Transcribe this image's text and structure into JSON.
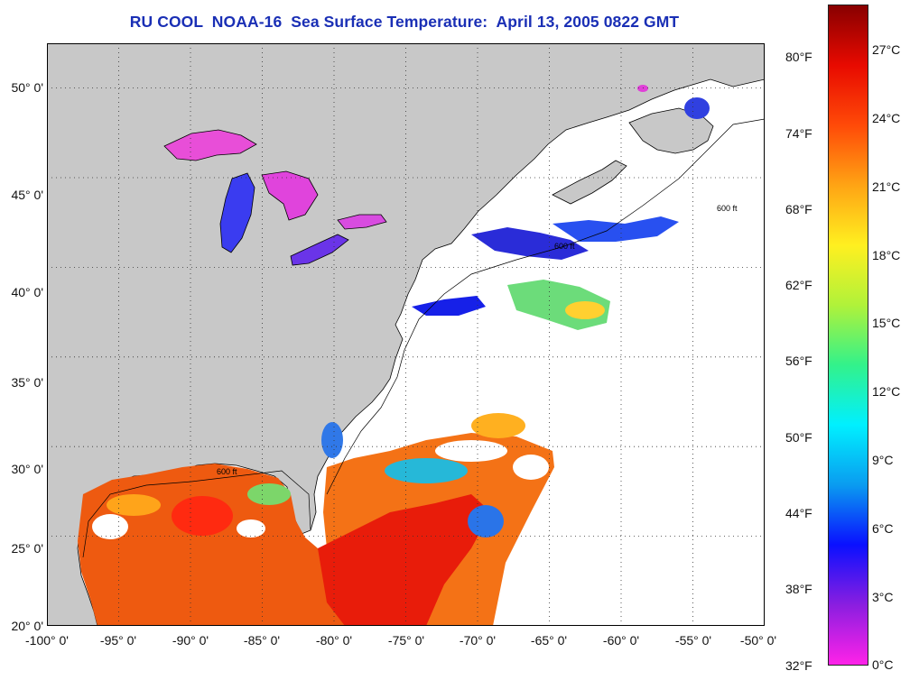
{
  "title": "RU COOL  NOAA-16  Sea Surface Temperature:  April 13, 2005 0822 GMT",
  "map": {
    "lon_range": [
      -100,
      -50
    ],
    "lat_range": [
      20,
      52.5
    ],
    "lon_ticks": [
      "-100° 0'",
      "-95° 0'",
      "-90° 0'",
      "-85° 0'",
      "-80° 0'",
      "-75° 0'",
      "-70° 0'",
      "-65° 0'",
      "-60° 0'",
      "-55° 0'",
      "-50° 0'"
    ],
    "lat_ticks": [
      "20° 0'",
      "25° 0'",
      "30° 0'",
      "35° 0'",
      "40° 0'",
      "45° 0'",
      "50° 0'"
    ],
    "grid": "dotted",
    "contour_label": "600 ft",
    "colors": {
      "land": "#c8c8c8",
      "cloud": "#ffffff",
      "coast": "#000000"
    }
  },
  "colorbar": {
    "fahrenheit_ticks": [
      "80°F",
      "74°F",
      "68°F",
      "62°F",
      "56°F",
      "50°F",
      "44°F",
      "38°F",
      "32°F"
    ],
    "celsius_ticks": [
      "27°C",
      "24°C",
      "21°C",
      "18°C",
      "15°C",
      "12°C",
      "9°C",
      "6°C",
      "3°C",
      "0°C"
    ],
    "colors_bottom_to_top": [
      "#ff22e8",
      "#8a1ee0",
      "#0a10ff",
      "#0a9cf0",
      "#00f0ff",
      "#33f28a",
      "#b0f23a",
      "#fff020",
      "#ffa414",
      "#ff4a08",
      "#e80a00",
      "#880000"
    ]
  }
}
